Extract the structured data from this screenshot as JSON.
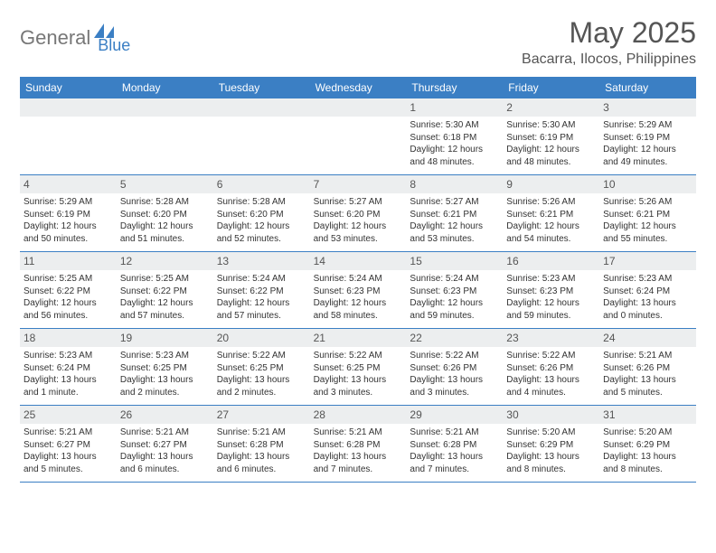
{
  "logo": {
    "text1": "General",
    "text2": "Blue"
  },
  "title": "May 2025",
  "location": "Bacarra, Ilocos, Philippines",
  "colors": {
    "header_bg": "#3b7fc4",
    "header_text": "#ffffff",
    "daynum_bg": "#eceeef",
    "text_gray": "#555555",
    "logo_gray": "#777777",
    "logo_blue": "#3b7fc4"
  },
  "day_headers": [
    "Sunday",
    "Monday",
    "Tuesday",
    "Wednesday",
    "Thursday",
    "Friday",
    "Saturday"
  ],
  "weeks": [
    [
      {
        "n": "",
        "sr": "",
        "ss": "",
        "dl": ""
      },
      {
        "n": "",
        "sr": "",
        "ss": "",
        "dl": ""
      },
      {
        "n": "",
        "sr": "",
        "ss": "",
        "dl": ""
      },
      {
        "n": "",
        "sr": "",
        "ss": "",
        "dl": ""
      },
      {
        "n": "1",
        "sr": "Sunrise: 5:30 AM",
        "ss": "Sunset: 6:18 PM",
        "dl": "Daylight: 12 hours and 48 minutes."
      },
      {
        "n": "2",
        "sr": "Sunrise: 5:30 AM",
        "ss": "Sunset: 6:19 PM",
        "dl": "Daylight: 12 hours and 48 minutes."
      },
      {
        "n": "3",
        "sr": "Sunrise: 5:29 AM",
        "ss": "Sunset: 6:19 PM",
        "dl": "Daylight: 12 hours and 49 minutes."
      }
    ],
    [
      {
        "n": "4",
        "sr": "Sunrise: 5:29 AM",
        "ss": "Sunset: 6:19 PM",
        "dl": "Daylight: 12 hours and 50 minutes."
      },
      {
        "n": "5",
        "sr": "Sunrise: 5:28 AM",
        "ss": "Sunset: 6:20 PM",
        "dl": "Daylight: 12 hours and 51 minutes."
      },
      {
        "n": "6",
        "sr": "Sunrise: 5:28 AM",
        "ss": "Sunset: 6:20 PM",
        "dl": "Daylight: 12 hours and 52 minutes."
      },
      {
        "n": "7",
        "sr": "Sunrise: 5:27 AM",
        "ss": "Sunset: 6:20 PM",
        "dl": "Daylight: 12 hours and 53 minutes."
      },
      {
        "n": "8",
        "sr": "Sunrise: 5:27 AM",
        "ss": "Sunset: 6:21 PM",
        "dl": "Daylight: 12 hours and 53 minutes."
      },
      {
        "n": "9",
        "sr": "Sunrise: 5:26 AM",
        "ss": "Sunset: 6:21 PM",
        "dl": "Daylight: 12 hours and 54 minutes."
      },
      {
        "n": "10",
        "sr": "Sunrise: 5:26 AM",
        "ss": "Sunset: 6:21 PM",
        "dl": "Daylight: 12 hours and 55 minutes."
      }
    ],
    [
      {
        "n": "11",
        "sr": "Sunrise: 5:25 AM",
        "ss": "Sunset: 6:22 PM",
        "dl": "Daylight: 12 hours and 56 minutes."
      },
      {
        "n": "12",
        "sr": "Sunrise: 5:25 AM",
        "ss": "Sunset: 6:22 PM",
        "dl": "Daylight: 12 hours and 57 minutes."
      },
      {
        "n": "13",
        "sr": "Sunrise: 5:24 AM",
        "ss": "Sunset: 6:22 PM",
        "dl": "Daylight: 12 hours and 57 minutes."
      },
      {
        "n": "14",
        "sr": "Sunrise: 5:24 AM",
        "ss": "Sunset: 6:23 PM",
        "dl": "Daylight: 12 hours and 58 minutes."
      },
      {
        "n": "15",
        "sr": "Sunrise: 5:24 AM",
        "ss": "Sunset: 6:23 PM",
        "dl": "Daylight: 12 hours and 59 minutes."
      },
      {
        "n": "16",
        "sr": "Sunrise: 5:23 AM",
        "ss": "Sunset: 6:23 PM",
        "dl": "Daylight: 12 hours and 59 minutes."
      },
      {
        "n": "17",
        "sr": "Sunrise: 5:23 AM",
        "ss": "Sunset: 6:24 PM",
        "dl": "Daylight: 13 hours and 0 minutes."
      }
    ],
    [
      {
        "n": "18",
        "sr": "Sunrise: 5:23 AM",
        "ss": "Sunset: 6:24 PM",
        "dl": "Daylight: 13 hours and 1 minute."
      },
      {
        "n": "19",
        "sr": "Sunrise: 5:23 AM",
        "ss": "Sunset: 6:25 PM",
        "dl": "Daylight: 13 hours and 2 minutes."
      },
      {
        "n": "20",
        "sr": "Sunrise: 5:22 AM",
        "ss": "Sunset: 6:25 PM",
        "dl": "Daylight: 13 hours and 2 minutes."
      },
      {
        "n": "21",
        "sr": "Sunrise: 5:22 AM",
        "ss": "Sunset: 6:25 PM",
        "dl": "Daylight: 13 hours and 3 minutes."
      },
      {
        "n": "22",
        "sr": "Sunrise: 5:22 AM",
        "ss": "Sunset: 6:26 PM",
        "dl": "Daylight: 13 hours and 3 minutes."
      },
      {
        "n": "23",
        "sr": "Sunrise: 5:22 AM",
        "ss": "Sunset: 6:26 PM",
        "dl": "Daylight: 13 hours and 4 minutes."
      },
      {
        "n": "24",
        "sr": "Sunrise: 5:21 AM",
        "ss": "Sunset: 6:26 PM",
        "dl": "Daylight: 13 hours and 5 minutes."
      }
    ],
    [
      {
        "n": "25",
        "sr": "Sunrise: 5:21 AM",
        "ss": "Sunset: 6:27 PM",
        "dl": "Daylight: 13 hours and 5 minutes."
      },
      {
        "n": "26",
        "sr": "Sunrise: 5:21 AM",
        "ss": "Sunset: 6:27 PM",
        "dl": "Daylight: 13 hours and 6 minutes."
      },
      {
        "n": "27",
        "sr": "Sunrise: 5:21 AM",
        "ss": "Sunset: 6:28 PM",
        "dl": "Daylight: 13 hours and 6 minutes."
      },
      {
        "n": "28",
        "sr": "Sunrise: 5:21 AM",
        "ss": "Sunset: 6:28 PM",
        "dl": "Daylight: 13 hours and 7 minutes."
      },
      {
        "n": "29",
        "sr": "Sunrise: 5:21 AM",
        "ss": "Sunset: 6:28 PM",
        "dl": "Daylight: 13 hours and 7 minutes."
      },
      {
        "n": "30",
        "sr": "Sunrise: 5:20 AM",
        "ss": "Sunset: 6:29 PM",
        "dl": "Daylight: 13 hours and 8 minutes."
      },
      {
        "n": "31",
        "sr": "Sunrise: 5:20 AM",
        "ss": "Sunset: 6:29 PM",
        "dl": "Daylight: 13 hours and 8 minutes."
      }
    ]
  ]
}
